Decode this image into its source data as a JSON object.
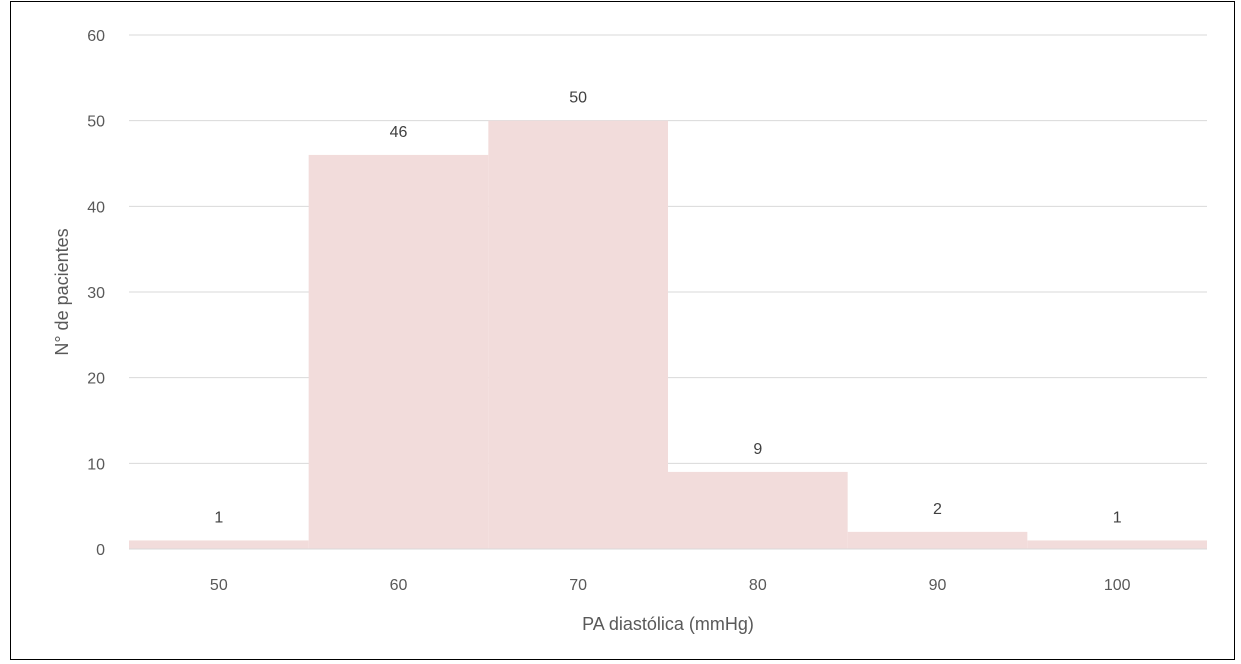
{
  "chart_data": {
    "type": "bar",
    "categories": [
      "50",
      "60",
      "70",
      "80",
      "90",
      "100"
    ],
    "values": [
      1,
      46,
      50,
      9,
      2,
      1
    ],
    "data_labels": [
      "1",
      "46",
      "50",
      "9",
      "2",
      "1"
    ],
    "yticks": [
      "0",
      "10",
      "20",
      "30",
      "40",
      "50",
      "60"
    ],
    "xlabel": "PA diastólica (mmHg)",
    "ylabel": "N° de pacientes",
    "ylim": [
      0,
      60
    ],
    "grid": true,
    "bar_color": "#f2dcdb",
    "gridline_color": "#d9d9d9"
  }
}
